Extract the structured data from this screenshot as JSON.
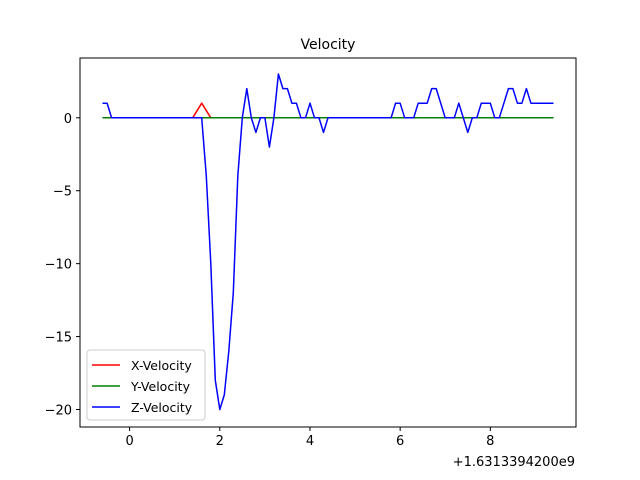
{
  "chart_data": {
    "type": "line",
    "title": "Velocity",
    "xlabel": "",
    "ylabel": "",
    "x_offset_label": "+1.6313394200e9",
    "xlim": [
      -1.1,
      9.9
    ],
    "ylim": [
      -21.2,
      4.1
    ],
    "x_ticks": [
      0,
      2,
      4,
      6,
      8
    ],
    "x_tick_labels": [
      "0",
      "2",
      "4",
      "6",
      "8"
    ],
    "y_ticks": [
      0,
      -5,
      -10,
      -15,
      -20
    ],
    "y_tick_labels": [
      "0",
      "−5",
      "−10",
      "−15",
      "−20"
    ],
    "grid": false,
    "legend_position": "lower-left",
    "series": [
      {
        "name": "X-Velocity",
        "color": "#ff0000",
        "x": [
          -0.6,
          1.4,
          1.6,
          1.8,
          9.4
        ],
        "y": [
          0,
          0,
          1,
          0,
          0
        ]
      },
      {
        "name": "Y-Velocity",
        "color": "#008000",
        "x": [
          -0.6,
          9.4
        ],
        "y": [
          0,
          0
        ]
      },
      {
        "name": "Z-Velocity",
        "color": "#0000ff",
        "x": [
          -0.6,
          -0.5,
          -0.4,
          -0.3,
          1.6,
          1.7,
          1.8,
          1.9,
          2.0,
          2.1,
          2.2,
          2.3,
          2.4,
          2.5,
          2.6,
          2.7,
          2.8,
          2.9,
          3.0,
          3.1,
          3.2,
          3.3,
          3.4,
          3.5,
          3.6,
          3.7,
          3.8,
          3.9,
          4.0,
          4.1,
          4.2,
          4.3,
          4.4,
          4.5,
          4.6,
          4.7,
          5.8,
          5.9,
          6.0,
          6.1,
          6.2,
          6.3,
          6.4,
          6.5,
          6.6,
          6.7,
          6.8,
          6.9,
          7.0,
          7.1,
          7.2,
          7.3,
          7.4,
          7.5,
          7.6,
          7.7,
          7.8,
          7.9,
          8.0,
          8.1,
          8.2,
          8.3,
          8.4,
          8.5,
          8.6,
          8.7,
          8.8,
          8.9,
          9.0,
          9.1,
          9.2,
          9.3,
          9.4
        ],
        "y": [
          1,
          1,
          0,
          0,
          0,
          -4,
          -10,
          -18,
          -20,
          -19,
          -16,
          -12,
          -4,
          0,
          2,
          0,
          -1,
          0,
          0,
          -2,
          0,
          3,
          2,
          2,
          1,
          1,
          0,
          0,
          1,
          0,
          0,
          -1,
          0,
          0,
          0,
          0,
          0,
          1,
          1,
          0,
          0,
          0,
          1,
          1,
          1,
          2,
          2,
          1,
          0,
          0,
          0,
          1,
          0,
          -1,
          0,
          0,
          1,
          1,
          1,
          0,
          0,
          1,
          2,
          2,
          1,
          1,
          2,
          1,
          1,
          1,
          1,
          1,
          1
        ]
      }
    ]
  }
}
